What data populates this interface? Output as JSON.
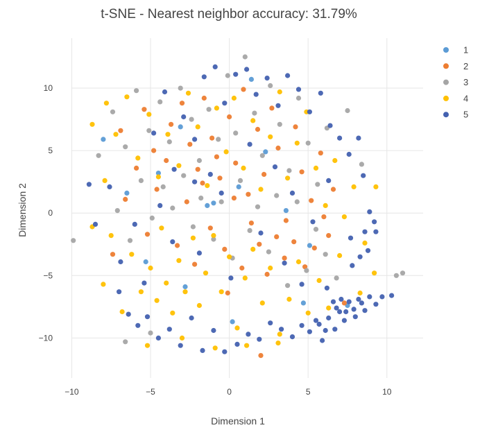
{
  "chart_data": {
    "type": "scatter",
    "title": "t-SNE - Nearest neighbor accuracy: 31.79%",
    "xlabel": "Dimension 1",
    "ylabel": "Dimension 2",
    "xlim": [
      -10.9,
      12.3
    ],
    "ylim": [
      -13.2,
      14.0
    ],
    "xticks": [
      -10,
      -5,
      0,
      5,
      10
    ],
    "yticks": [
      -10,
      -5,
      0,
      5,
      10
    ],
    "xtick_labels": [
      "−10",
      "−5",
      "0",
      "5",
      "10"
    ],
    "ytick_labels": [
      "−10",
      "−5",
      "0",
      "5",
      "10"
    ],
    "grid": true,
    "legend_position": "top-right",
    "series": [
      {
        "name": "1",
        "color": "#5b9bd5",
        "points": [
          [
            -8.0,
            5.9
          ],
          [
            -4.5,
            3.2
          ],
          [
            -3.1,
            6.9
          ],
          [
            -1.0,
            0.8
          ],
          [
            -1.4,
            0.6
          ],
          [
            0.6,
            2.1
          ],
          [
            2.3,
            4.9
          ],
          [
            3.6,
            0.2
          ],
          [
            5.1,
            -2.6
          ],
          [
            -5.3,
            -3.9
          ],
          [
            -2.8,
            -5.9
          ],
          [
            0.2,
            -8.7
          ],
          [
            4.7,
            -7.2
          ],
          [
            7.5,
            -7.4
          ],
          [
            -6.5,
            1.6
          ],
          [
            1.4,
            10.7
          ]
        ]
      },
      {
        "name": "2",
        "color": "#ed7d31",
        "points": [
          [
            -6.9,
            6.6
          ],
          [
            -5.4,
            8.3
          ],
          [
            -4.8,
            5.0
          ],
          [
            -3.7,
            7.1
          ],
          [
            -3.0,
            8.8
          ],
          [
            -2.5,
            5.5
          ],
          [
            -2.0,
            3.5
          ],
          [
            -1.6,
            9.2
          ],
          [
            -1.1,
            6.0
          ],
          [
            -0.6,
            2.8
          ],
          [
            0.0,
            7.7
          ],
          [
            0.4,
            4.0
          ],
          [
            0.9,
            9.9
          ],
          [
            1.2,
            1.5
          ],
          [
            1.8,
            6.7
          ],
          [
            2.2,
            3.1
          ],
          [
            2.7,
            8.4
          ],
          [
            3.1,
            5.2
          ],
          [
            3.6,
            -0.6
          ],
          [
            4.2,
            6.9
          ],
          [
            4.6,
            3.3
          ],
          [
            5.2,
            1.0
          ],
          [
            5.8,
            4.8
          ],
          [
            6.3,
            -1.8
          ],
          [
            -7.4,
            -3.3
          ],
          [
            -6.6,
            1.1
          ],
          [
            -5.9,
            3.6
          ],
          [
            -5.2,
            -1.7
          ],
          [
            -4.6,
            1.9
          ],
          [
            -4.0,
            4.2
          ],
          [
            -3.3,
            -2.6
          ],
          [
            -2.7,
            0.9
          ],
          [
            -2.2,
            -4.1
          ],
          [
            -1.7,
            2.4
          ],
          [
            -1.2,
            -1.2
          ],
          [
            -0.8,
            4.5
          ],
          [
            -0.3,
            -2.9
          ],
          [
            0.3,
            1.2
          ],
          [
            0.8,
            -4.4
          ],
          [
            1.4,
            -0.8
          ],
          [
            1.9,
            -2.5
          ],
          [
            2.4,
            -4.9
          ],
          [
            3.0,
            -1.9
          ],
          [
            3.5,
            -3.6
          ],
          [
            4.1,
            -2.3
          ],
          [
            4.8,
            -4.3
          ],
          [
            5.4,
            -2.8
          ],
          [
            6.0,
            -0.3
          ],
          [
            6.6,
            1.9
          ],
          [
            7.3,
            -7.2
          ],
          [
            2.0,
            -11.4
          ],
          [
            -0.1,
            -6.4
          ]
        ]
      },
      {
        "name": "3",
        "color": "#a5a5a5",
        "points": [
          [
            -9.9,
            -2.2
          ],
          [
            -8.3,
            4.6
          ],
          [
            -7.4,
            8.1
          ],
          [
            -6.6,
            5.3
          ],
          [
            -5.9,
            9.8
          ],
          [
            -5.1,
            6.6
          ],
          [
            -4.4,
            8.9
          ],
          [
            -3.8,
            5.7
          ],
          [
            -3.1,
            10.0
          ],
          [
            -2.4,
            7.5
          ],
          [
            -1.9,
            4.2
          ],
          [
            -1.3,
            8.3
          ],
          [
            -0.7,
            5.9
          ],
          [
            -0.1,
            11.0
          ],
          [
            0.4,
            6.4
          ],
          [
            1.0,
            12.5
          ],
          [
            1.6,
            8.0
          ],
          [
            2.1,
            4.6
          ],
          [
            2.6,
            10.2
          ],
          [
            3.2,
            7.1
          ],
          [
            3.8,
            3.4
          ],
          [
            4.4,
            9.2
          ],
          [
            5.0,
            5.6
          ],
          [
            5.6,
            2.3
          ],
          [
            6.2,
            6.8
          ],
          [
            7.5,
            8.2
          ],
          [
            8.4,
            3.9
          ],
          [
            -7.1,
            0.2
          ],
          [
            -6.3,
            -2.2
          ],
          [
            -5.6,
            2.6
          ],
          [
            -4.9,
            -0.4
          ],
          [
            -4.2,
            2.1
          ],
          [
            -3.6,
            0.4
          ],
          [
            -2.9,
            3.0
          ],
          [
            -2.3,
            -1.1
          ],
          [
            -1.8,
            1.2
          ],
          [
            -1.0,
            -2.1
          ],
          [
            -0.5,
            0.9
          ],
          [
            0.2,
            -3.6
          ],
          [
            0.7,
            2.6
          ],
          [
            1.3,
            -1.4
          ],
          [
            1.8,
            0.5
          ],
          [
            2.5,
            -3.1
          ],
          [
            3.0,
            1.4
          ],
          [
            3.7,
            -5.8
          ],
          [
            4.3,
            0.9
          ],
          [
            4.9,
            -4.6
          ],
          [
            5.5,
            -1.3
          ],
          [
            6.1,
            -3.3
          ],
          [
            6.8,
            -5.2
          ],
          [
            10.6,
            -5.0
          ],
          [
            11.0,
            -4.8
          ],
          [
            -6.6,
            -10.3
          ],
          [
            -5.0,
            -9.6
          ]
        ]
      },
      {
        "name": "4",
        "color": "#ffc000",
        "points": [
          [
            -8.7,
            7.1
          ],
          [
            -7.9,
            2.6
          ],
          [
            -7.2,
            6.3
          ],
          [
            -6.5,
            9.3
          ],
          [
            -5.8,
            4.4
          ],
          [
            -5.1,
            7.9
          ],
          [
            -4.5,
            2.9
          ],
          [
            -3.9,
            6.3
          ],
          [
            -3.2,
            3.8
          ],
          [
            -2.6,
            9.6
          ],
          [
            -2.0,
            6.9
          ],
          [
            -1.4,
            2.2
          ],
          [
            -0.8,
            8.4
          ],
          [
            -0.2,
            4.9
          ],
          [
            0.3,
            9.2
          ],
          [
            0.9,
            3.6
          ],
          [
            1.5,
            7.4
          ],
          [
            2.0,
            1.9
          ],
          [
            2.6,
            6.1
          ],
          [
            3.2,
            9.7
          ],
          [
            3.7,
            2.8
          ],
          [
            4.3,
            5.6
          ],
          [
            4.9,
            8.1
          ],
          [
            5.5,
            3.6
          ],
          [
            6.1,
            0.6
          ],
          [
            6.7,
            4.2
          ],
          [
            7.3,
            -0.3
          ],
          [
            7.9,
            2.1
          ],
          [
            8.6,
            -2.4
          ],
          [
            9.3,
            2.1
          ],
          [
            -8.0,
            -5.7
          ],
          [
            -7.5,
            -1.8
          ],
          [
            -6.8,
            -7.9
          ],
          [
            -6.2,
            -3.3
          ],
          [
            -5.6,
            -6.3
          ],
          [
            -5.0,
            -4.4
          ],
          [
            -4.6,
            -7.0
          ],
          [
            -4.3,
            -1.2
          ],
          [
            -4.0,
            -5.6
          ],
          [
            -3.6,
            -8.0
          ],
          [
            -3.2,
            -3.8
          ],
          [
            -2.8,
            -6.3
          ],
          [
            -2.3,
            -2.0
          ],
          [
            -1.9,
            -7.4
          ],
          [
            -1.5,
            -4.8
          ],
          [
            -1.0,
            -1.8
          ],
          [
            -0.5,
            -6.3
          ],
          [
            0.0,
            -3.5
          ],
          [
            0.5,
            -9.2
          ],
          [
            1.0,
            -5.2
          ],
          [
            1.5,
            -2.9
          ],
          [
            2.1,
            -7.2
          ],
          [
            2.6,
            -4.4
          ],
          [
            3.2,
            -9.7
          ],
          [
            3.8,
            -6.9
          ],
          [
            4.4,
            -3.9
          ],
          [
            5.0,
            -8.0
          ],
          [
            5.7,
            -5.4
          ],
          [
            6.3,
            -7.6
          ],
          [
            7.0,
            -3.4
          ],
          [
            8.3,
            -6.4
          ],
          [
            9.2,
            -4.8
          ],
          [
            -5.2,
            -10.6
          ],
          [
            -3.0,
            -10.0
          ],
          [
            -0.9,
            -10.8
          ],
          [
            1.1,
            -10.6
          ],
          [
            3.1,
            -10.4
          ],
          [
            -8.7,
            -1.1
          ],
          [
            -7.8,
            8.8
          ]
        ]
      },
      {
        "name": "5",
        "color": "#4361b0",
        "points": [
          [
            -8.9,
            2.3
          ],
          [
            -8.5,
            -0.9
          ],
          [
            -7.6,
            2.1
          ],
          [
            -6.9,
            -3.9
          ],
          [
            -6.0,
            -0.9
          ],
          [
            -5.4,
            -5.6
          ],
          [
            -4.8,
            6.4
          ],
          [
            -4.1,
            9.7
          ],
          [
            -3.5,
            3.5
          ],
          [
            -2.9,
            7.7
          ],
          [
            -2.2,
            5.9
          ],
          [
            -1.6,
            10.9
          ],
          [
            -0.9,
            11.7
          ],
          [
            -0.3,
            8.8
          ],
          [
            0.4,
            11.1
          ],
          [
            1.1,
            11.5
          ],
          [
            1.7,
            9.5
          ],
          [
            2.4,
            10.8
          ],
          [
            3.1,
            8.6
          ],
          [
            3.7,
            11.0
          ],
          [
            4.4,
            9.9
          ],
          [
            5.1,
            8.1
          ],
          [
            5.8,
            9.6
          ],
          [
            6.4,
            7.0
          ],
          [
            7.0,
            6.0
          ],
          [
            7.6,
            4.7
          ],
          [
            8.2,
            6.0
          ],
          [
            8.5,
            3.0
          ],
          [
            8.9,
            0.1
          ],
          [
            9.2,
            -0.7
          ],
          [
            9.3,
            -1.5
          ],
          [
            8.8,
            -3.0
          ],
          [
            8.3,
            -3.5
          ],
          [
            7.7,
            -2.0
          ],
          [
            -7.0,
            -6.3
          ],
          [
            -6.4,
            -8.1
          ],
          [
            -5.8,
            -9.0
          ],
          [
            -5.2,
            -8.3
          ],
          [
            -4.5,
            -10.0
          ],
          [
            -3.8,
            -9.3
          ],
          [
            -3.1,
            -10.6
          ],
          [
            -2.4,
            -8.4
          ],
          [
            -1.7,
            -11.0
          ],
          [
            -1.0,
            -9.4
          ],
          [
            -0.3,
            -11.1
          ],
          [
            0.5,
            -10.5
          ],
          [
            1.2,
            -9.7
          ],
          [
            1.9,
            -10.1
          ],
          [
            2.6,
            -8.8
          ],
          [
            3.3,
            -9.3
          ],
          [
            4.0,
            -9.9
          ],
          [
            4.6,
            -9.0
          ],
          [
            5.1,
            -9.5
          ],
          [
            5.5,
            -8.6
          ],
          [
            5.9,
            -10.2
          ],
          [
            6.3,
            -8.4
          ],
          [
            6.7,
            -9.3
          ],
          [
            7.0,
            -7.9
          ],
          [
            7.3,
            -8.6
          ],
          [
            7.6,
            -7.1
          ],
          [
            7.9,
            -7.7
          ],
          [
            8.2,
            -6.9
          ],
          [
            8.6,
            -7.8
          ],
          [
            8.9,
            -6.7
          ],
          [
            9.3,
            -7.3
          ],
          [
            9.7,
            -6.7
          ],
          [
            10.3,
            -6.6
          ],
          [
            6.6,
            -7.1
          ],
          [
            6.8,
            -7.6
          ],
          [
            7.1,
            -6.9
          ],
          [
            7.4,
            -7.9
          ],
          [
            5.7,
            -8.9
          ],
          [
            6.1,
            -9.4
          ],
          [
            8.0,
            -8.3
          ],
          [
            8.4,
            -7.2
          ],
          [
            -2.2,
            2.5
          ],
          [
            -1.2,
            3.1
          ],
          [
            1.3,
            5.5
          ],
          [
            2.9,
            3.7
          ],
          [
            4.0,
            1.6
          ],
          [
            5.3,
            -0.7
          ],
          [
            6.3,
            2.6
          ],
          [
            -3.6,
            -2.3
          ],
          [
            -1.9,
            -3.2
          ],
          [
            0.1,
            -5.2
          ],
          [
            2.0,
            -1.6
          ],
          [
            3.5,
            -4.0
          ],
          [
            4.6,
            -5.7
          ],
          [
            6.2,
            -6.0
          ],
          [
            7.8,
            -4.2
          ],
          [
            8.6,
            -1.5
          ],
          [
            -4.4,
            0.6
          ],
          [
            -0.5,
            1.6
          ]
        ]
      }
    ]
  }
}
